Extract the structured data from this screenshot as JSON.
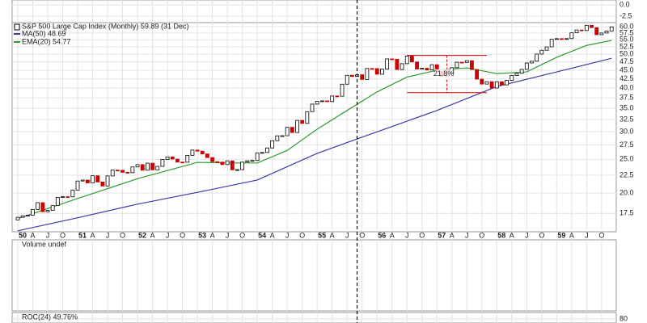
{
  "chart_data": [
    {
      "type": "panel",
      "ylim": [
        -3.93,
        1.07
      ],
      "yticks": [
        {
          "value": 0,
          "label": "0.0"
        },
        {
          "value": -2.5,
          "label": "-2.5"
        }
      ]
    },
    {
      "type": "candlestick",
      "title": "S&P 500 Large Cap Index (Monthly) 59.89 (31 Dec)",
      "log_scale": true,
      "grid": true,
      "up_color": "#000000",
      "down_color": "#cc0000",
      "xlim": [
        -1.13,
        119.94
      ],
      "ylim": [
        15.5,
        61.6
      ],
      "x": [
        -1,
        0,
        1,
        2,
        3,
        4,
        5,
        6,
        7,
        8,
        9,
        10,
        11,
        12,
        13,
        14,
        15,
        16,
        17,
        18,
        19,
        20,
        21,
        22,
        23,
        24,
        25,
        26,
        27,
        28,
        29,
        30,
        31,
        32,
        33,
        34,
        35,
        36,
        37,
        38,
        39,
        40,
        41,
        42,
        43,
        44,
        45,
        46,
        47,
        48,
        49,
        50,
        51,
        52,
        53,
        54,
        55,
        56,
        57,
        58,
        59,
        60,
        61,
        62,
        63,
        64,
        65,
        66,
        67,
        68,
        69,
        70,
        71,
        72,
        73,
        74,
        75,
        76,
        77,
        78,
        79,
        80,
        81,
        82,
        83,
        84,
        85,
        86,
        87,
        88,
        89,
        90,
        91,
        92,
        93,
        94,
        95,
        96,
        97,
        98,
        99,
        100,
        101,
        102,
        103,
        104,
        105,
        106,
        107,
        108,
        109,
        110,
        111,
        112,
        113,
        114,
        115,
        116,
        117,
        118,
        119
      ],
      "values": [
        16.76,
        17.05,
        17.22,
        17.29,
        17.96,
        18.78,
        17.69,
        17.84,
        18.42,
        19.45,
        19.53,
        19.51,
        20.41,
        21.66,
        21.8,
        21.4,
        22.43,
        21.52,
        20.96,
        22.4,
        23.28,
        23.26,
        22.94,
        22.88,
        23.77,
        24.14,
        23.26,
        24.37,
        23.32,
        23.86,
        24.96,
        25.4,
        25.03,
        24.54,
        24.52,
        25.66,
        26.57,
        26.38,
        25.9,
        25.29,
        24.62,
        24.54,
        24.14,
        24.75,
        23.32,
        23.35,
        24.54,
        24.76,
        24.81,
        26.08,
        26.15,
        26.94,
        28.26,
        29.19,
        29.21,
        30.88,
        29.83,
        32.31,
        31.68,
        34.24,
        35.98,
        36.63,
        36.76,
        36.58,
        37.96,
        37.91,
        41.03,
        43.52,
        43.18,
        43.67,
        42.34,
        45.51,
        45.48,
        43.82,
        45.34,
        48.48,
        48.38,
        45.2,
        46.97,
        49.39,
        47.51,
        45.35,
        45.58,
        45.08,
        46.67,
        44.72,
        43.26,
        44.11,
        45.74,
        47.43,
        47.37,
        47.91,
        45.22,
        42.42,
        41.06,
        41.72,
        39.99,
        41.7,
        40.84,
        42.1,
        43.44,
        44.09,
        45.24,
        47.19,
        47.75,
        50.06,
        51.33,
        52.48,
        55.21,
        55.42,
        55.41,
        55.44,
        57.59,
        58.68,
        58.47,
        60.51,
        59.6,
        56.88,
        57.52,
        58.28,
        59.89
      ],
      "series": [
        {
          "name": "MA(50) 48.69",
          "color": "#3a3aa8",
          "x": [
            0,
            12,
            24,
            36,
            48,
            60,
            68,
            84,
            96,
            108,
            119
          ],
          "values": [
            15.6,
            17.0,
            18.6,
            20.1,
            21.8,
            26.0,
            28.6,
            34.5,
            40.4,
            44.5,
            48.69
          ]
        },
        {
          "name": "EMA(20) 54.77",
          "color": "#2e9a2e",
          "x": [
            0,
            12,
            24,
            36,
            42,
            48,
            54,
            60,
            66,
            72,
            78,
            84,
            90,
            96,
            102,
            108,
            114,
            119
          ],
          "values": [
            16.9,
            19.3,
            22.0,
            24.5,
            24.4,
            24.4,
            26.5,
            30.5,
            34.5,
            39.0,
            43.0,
            45.0,
            45.7,
            44.0,
            44.5,
            49.0,
            53.0,
            54.77
          ]
        }
      ],
      "yticks": [
        17.5,
        {
          "value": 20,
          "label": "20.0"
        },
        22.5,
        {
          "value": 25,
          "label": "25.0"
        },
        27.5,
        {
          "value": 30,
          "label": "30.0"
        },
        32.5,
        {
          "value": 35,
          "label": "35.0"
        },
        37.5,
        {
          "value": 40,
          "label": "40.0"
        },
        42.5,
        {
          "value": 45,
          "label": "45.0"
        },
        47.5,
        {
          "value": 50,
          "label": "50.0"
        },
        52.5,
        {
          "value": 55,
          "label": "55.0"
        },
        57.5,
        {
          "value": 60,
          "label": "60.0"
        }
      ],
      "xticks": [
        {
          "value": 0,
          "label": "50"
        },
        {
          "value": 3,
          "label": "A"
        },
        {
          "value": 6,
          "label": "J"
        },
        {
          "value": 9,
          "label": "O"
        },
        {
          "value": 12,
          "label": "51"
        },
        {
          "value": 15,
          "label": "A"
        },
        {
          "value": 18,
          "label": "J"
        },
        {
          "value": 21,
          "label": "O"
        },
        {
          "value": 24,
          "label": "52"
        },
        {
          "value": 27,
          "label": "A"
        },
        {
          "value": 30,
          "label": "J"
        },
        {
          "value": 33,
          "label": "O"
        },
        {
          "value": 36,
          "label": "53"
        },
        {
          "value": 39,
          "label": "A"
        },
        {
          "value": 42,
          "label": "J"
        },
        {
          "value": 45,
          "label": "O"
        },
        {
          "value": 48,
          "label": "54"
        },
        {
          "value": 51,
          "label": "A"
        },
        {
          "value": 54,
          "label": "J"
        },
        {
          "value": 57,
          "label": "O"
        },
        {
          "value": 60,
          "label": "55"
        },
        {
          "value": 63,
          "label": "A"
        },
        {
          "value": 66,
          "label": "J"
        },
        {
          "value": 69,
          "label": "O"
        },
        {
          "value": 72,
          "label": "56"
        },
        {
          "value": 75,
          "label": "A"
        },
        {
          "value": 78,
          "label": "J"
        },
        {
          "value": 81,
          "label": "O"
        },
        {
          "value": 84,
          "label": "57"
        },
        {
          "value": 87,
          "label": "A"
        },
        {
          "value": 90,
          "label": "J"
        },
        {
          "value": 93,
          "label": "O"
        },
        {
          "value": 96,
          "label": "58"
        },
        {
          "value": 99,
          "label": "A"
        },
        {
          "value": 102,
          "label": "J"
        },
        {
          "value": 105,
          "label": "O"
        },
        {
          "value": 108,
          "label": "59"
        },
        {
          "value": 111,
          "label": "A"
        },
        {
          "value": 114,
          "label": "J"
        },
        {
          "value": 117,
          "label": "O"
        }
      ],
      "vline": 68,
      "annotation": {
        "text": "21.8%",
        "color": "#cc0000",
        "x": [
          78,
          94
        ],
        "high": 49.6,
        "low": 38.8
      }
    },
    {
      "type": "panel",
      "title": "Volume undef"
    },
    {
      "type": "panel",
      "title": "ROC(24) 49.76%",
      "ylim": [
        -20,
        90
      ],
      "yticks": [
        80
      ]
    }
  ]
}
